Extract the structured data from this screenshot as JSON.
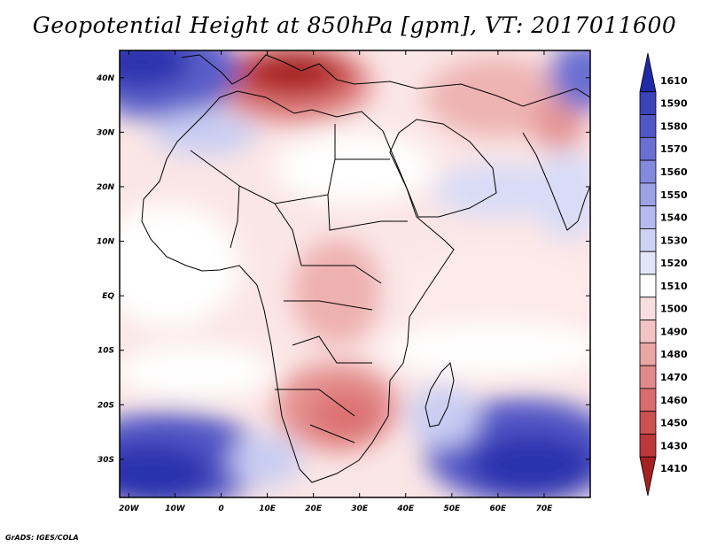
{
  "title": "Geopotential Height at 850hPa [gpm], VT: 2017011600",
  "credit": "GrADS: IGES/COLA",
  "map": {
    "x_ticks": [
      "20W",
      "10W",
      "0",
      "10E",
      "20E",
      "30E",
      "40E",
      "50E",
      "60E",
      "70E"
    ],
    "x_tick_values": [
      -20,
      -10,
      0,
      10,
      20,
      30,
      40,
      50,
      60,
      70
    ],
    "y_ticks": [
      "40N",
      "30N",
      "20N",
      "10N",
      "EQ",
      "10S",
      "20S",
      "30S"
    ],
    "y_tick_values": [
      40,
      30,
      20,
      10,
      0,
      -10,
      -20,
      -30
    ],
    "lon_range": [
      -22,
      80
    ],
    "lat_range": [
      -37,
      45
    ]
  },
  "colorbar": {
    "labels": [
      "1610",
      "1590",
      "1580",
      "1570",
      "1560",
      "1550",
      "1540",
      "1530",
      "1520",
      "1510",
      "1500",
      "1490",
      "1480",
      "1470",
      "1460",
      "1450",
      "1430",
      "1410"
    ],
    "colors": [
      "#202aa8",
      "#3a43b8",
      "#5257c6",
      "#6a6fd2",
      "#8389dd",
      "#9ca2e6",
      "#b5baee",
      "#cdd1f4",
      "#e2e4f8",
      "#ffffff",
      "#f8dede",
      "#f2c3c3",
      "#eaa5a5",
      "#e28a8a",
      "#d86d6d",
      "#cc5050",
      "#bd3838",
      "#a52020"
    ]
  }
}
